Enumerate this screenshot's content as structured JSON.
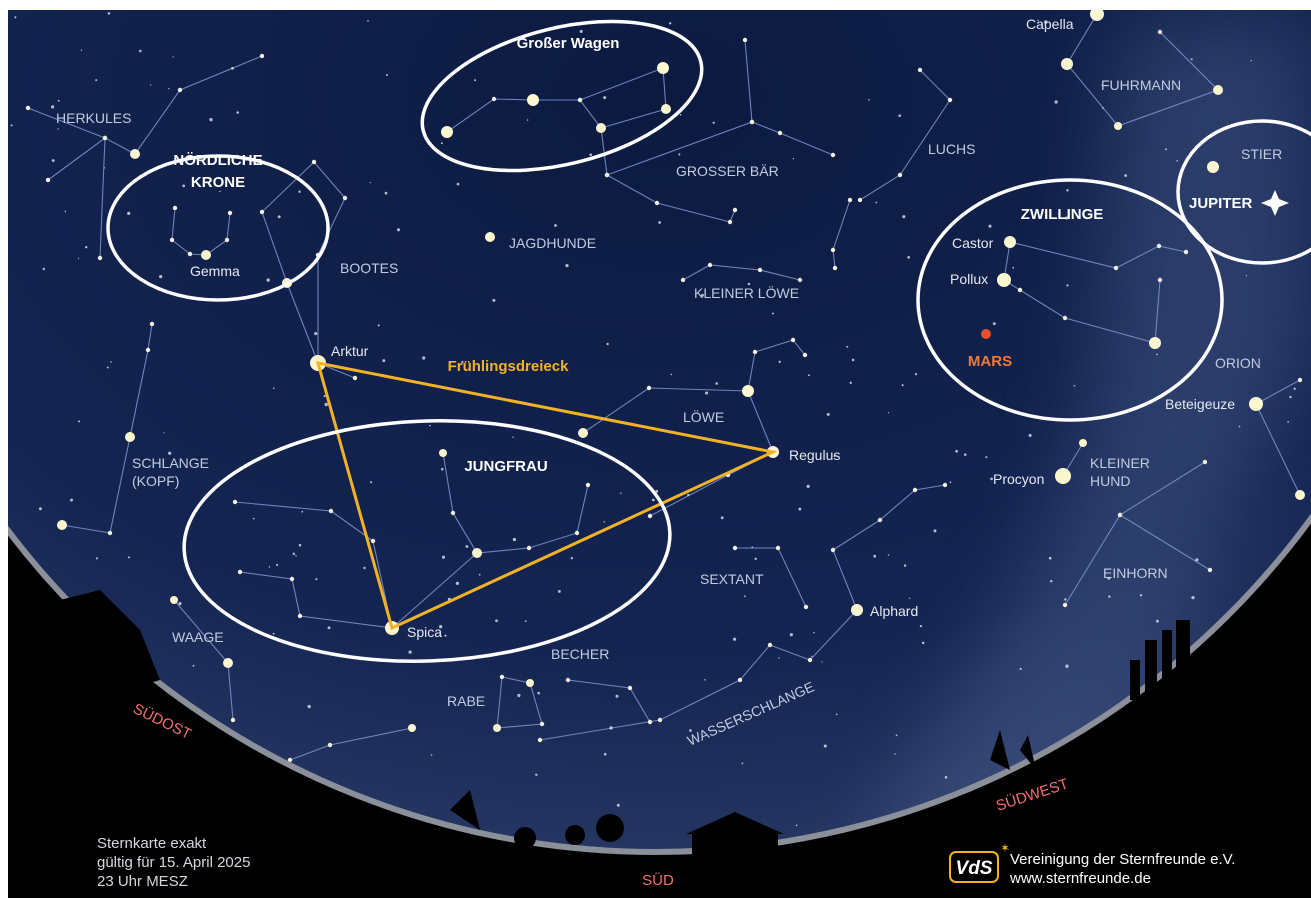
{
  "highlights": {
    "grosser_wagen": "Großer Wagen",
    "noerdliche_krone": [
      "NÖRDLICHE",
      "KRONE"
    ],
    "zwillinge": "ZWILLINGE",
    "jupiter": "JUPITER",
    "jungfrau": "JUNGFRAU",
    "mars": "MARS",
    "fruehlingsdreieck": "Frühlingsdreieck"
  },
  "constellations": [
    "HERKULES",
    "BOOTES",
    "JAGDHUNDE",
    "GROSSER BÄR",
    "KLEINER LÖWE",
    "LUCHS",
    "FUHRMANN",
    "STIER",
    "ORION",
    "LÖWE",
    [
      "SCHLANGE",
      "(KOPF)"
    ],
    [
      "KLEINER",
      "HUND"
    ],
    "SEXTANT",
    "EINHORN",
    "WAAGE",
    "BECHER",
    "RABE",
    "WASSERSCHLANGE"
  ],
  "stars": [
    "Capella",
    "Gemma",
    "Arktur",
    "Castor",
    "Pollux",
    "Beteigeuze",
    "Regulus",
    "Procyon",
    "Spica",
    "Alphard"
  ],
  "directions": [
    "SÜDOST",
    "SÜD",
    "SÜDWEST"
  ],
  "footer": {
    "validity": [
      "Sternkarte exakt",
      "gültig für 15. April 2025",
      "23 Uhr MESZ"
    ],
    "logo": "VdS",
    "organization": "Vereinigung der Sternfreunde e.V.",
    "website": "www.sternfreunde.de"
  }
}
